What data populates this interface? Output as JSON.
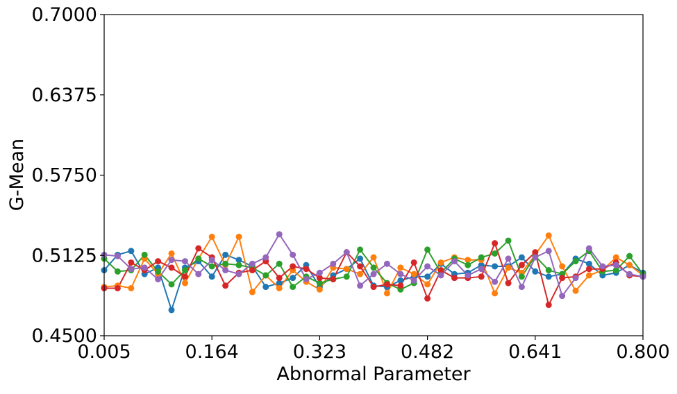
{
  "chart_data": {
    "type": "line",
    "title": "",
    "xlabel": "Abnormal Parameter",
    "ylabel": "G-Mean",
    "xlim": [
      0.005,
      0.8
    ],
    "ylim": [
      0.45,
      0.7
    ],
    "xticks": [
      "0.005",
      "0.164",
      "0.323",
      "0.482",
      "0.641",
      "0.800"
    ],
    "yticks": [
      "0.4500",
      "0.5125",
      "0.5750",
      "0.6375",
      "0.7000"
    ],
    "grid": false,
    "legend": "none",
    "x": [
      0.005,
      0.0249,
      0.0448,
      0.0646,
      0.0845,
      0.1044,
      0.1243,
      0.1441,
      0.164,
      0.1839,
      0.2038,
      0.2236,
      0.2435,
      0.2634,
      0.2833,
      0.3031,
      0.323,
      0.3429,
      0.3628,
      0.3826,
      0.4025,
      0.4224,
      0.4423,
      0.4621,
      0.482,
      0.5019,
      0.5218,
      0.5416,
      0.5615,
      0.5814,
      0.6013,
      0.6211,
      0.641,
      0.6609,
      0.6808,
      0.7006,
      0.7205,
      0.7404,
      0.7603,
      0.7801,
      0.8
    ],
    "series": [
      {
        "color": "#1f77b4",
        "values": [
          0.501,
          0.513,
          0.516,
          0.498,
          0.503,
          0.47,
          0.503,
          0.508,
          0.496,
          0.513,
          0.509,
          0.504,
          0.488,
          0.491,
          0.495,
          0.505,
          0.488,
          0.497,
          0.502,
          0.51,
          0.489,
          0.488,
          0.493,
          0.496,
          0.496,
          0.506,
          0.498,
          0.499,
          0.505,
          0.504,
          0.504,
          0.511,
          0.5,
          0.496,
          0.498,
          0.51,
          0.506,
          0.497,
          0.499,
          0.505,
          0.499
        ]
      },
      {
        "color": "#ff7f0e",
        "values": [
          0.488,
          0.489,
          0.487,
          0.51,
          0.498,
          0.514,
          0.491,
          0.51,
          0.527,
          0.505,
          0.527,
          0.484,
          0.497,
          0.487,
          0.501,
          0.492,
          0.486,
          0.503,
          0.502,
          0.498,
          0.511,
          0.483,
          0.503,
          0.498,
          0.49,
          0.507,
          0.511,
          0.509,
          0.509,
          0.483,
          0.503,
          0.499,
          0.513,
          0.528,
          0.504,
          0.485,
          0.497,
          0.501,
          0.511,
          0.505,
          0.497
        ]
      },
      {
        "color": "#2ca02c",
        "values": [
          0.51,
          0.5,
          0.501,
          0.513,
          0.5,
          0.49,
          0.501,
          0.51,
          0.504,
          0.506,
          0.505,
          0.503,
          0.497,
          0.506,
          0.488,
          0.496,
          0.491,
          0.494,
          0.496,
          0.517,
          0.503,
          0.491,
          0.486,
          0.491,
          0.517,
          0.499,
          0.51,
          0.505,
          0.511,
          0.514,
          0.524,
          0.496,
          0.512,
          0.501,
          0.498,
          0.508,
          0.516,
          0.5,
          0.501,
          0.512,
          0.498
        ]
      },
      {
        "color": "#d62728",
        "values": [
          0.487,
          0.487,
          0.507,
          0.501,
          0.508,
          0.503,
          0.496,
          0.518,
          0.511,
          0.489,
          0.499,
          0.501,
          0.508,
          0.495,
          0.504,
          0.502,
          0.495,
          0.494,
          0.515,
          0.504,
          0.488,
          0.49,
          0.489,
          0.507,
          0.479,
          0.501,
          0.495,
          0.495,
          0.496,
          0.522,
          0.491,
          0.505,
          0.515,
          0.474,
          0.495,
          0.496,
          0.502,
          0.502,
          0.507,
          0.497,
          0.496
        ]
      },
      {
        "color": "#9467bd",
        "values": [
          0.513,
          0.512,
          0.502,
          0.503,
          0.494,
          0.509,
          0.508,
          0.498,
          0.509,
          0.501,
          0.498,
          0.506,
          0.511,
          0.529,
          0.513,
          0.494,
          0.499,
          0.506,
          0.515,
          0.489,
          0.498,
          0.506,
          0.498,
          0.493,
          0.504,
          0.497,
          0.508,
          0.497,
          0.502,
          0.492,
          0.51,
          0.488,
          0.511,
          0.516,
          0.481,
          0.495,
          0.518,
          0.504,
          0.505,
          0.498,
          0.496
        ]
      }
    ]
  }
}
